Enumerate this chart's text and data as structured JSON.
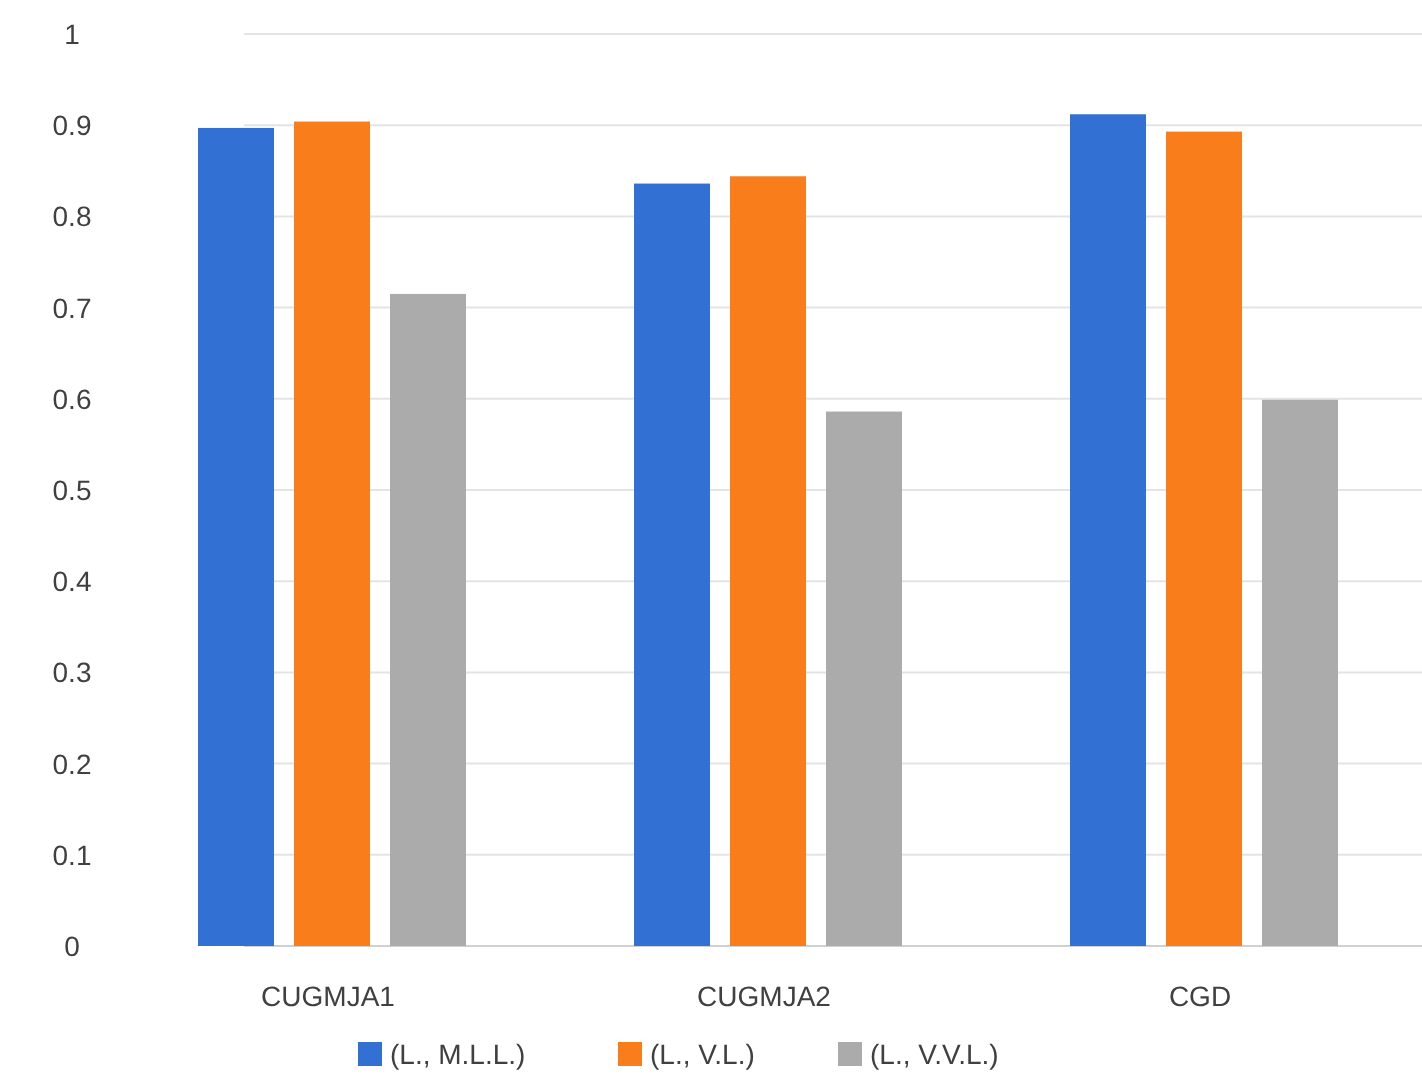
{
  "chart_data": {
    "type": "bar",
    "categories": [
      "CUGMJA1",
      "CUGMJA2",
      "CGD"
    ],
    "series": [
      {
        "name": "(L., M.L.L.)",
        "color": "#3370d4",
        "values": [
          0.897,
          0.836,
          0.912
        ]
      },
      {
        "name": "(L., V.L.)",
        "color": "#fa7d1c",
        "values": [
          0.904,
          0.844,
          0.893
        ]
      },
      {
        "name": "(L., V.V.L.)",
        "color": "#ababab",
        "values": [
          0.715,
          0.586,
          0.599
        ]
      }
    ],
    "ylim": [
      0,
      1
    ],
    "yticks": [
      0,
      0.1,
      0.2,
      0.3,
      0.4,
      0.5,
      0.6,
      0.7,
      0.8,
      0.9,
      1
    ],
    "grid": "y",
    "legend": "bottom"
  }
}
